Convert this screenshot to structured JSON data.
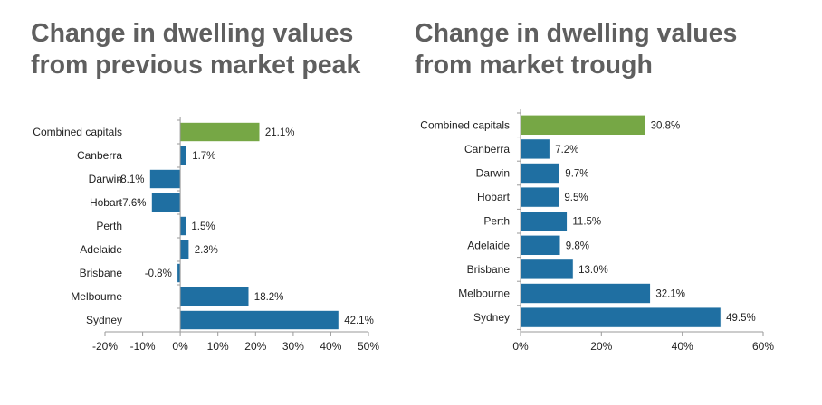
{
  "colors": {
    "highlight": "#76a745",
    "bar": "#1f6fa2",
    "bar_edge": "#ffffff",
    "axis": "#9a9a9a",
    "title": "#5f5f5f"
  },
  "chart_data": [
    {
      "type": "bar",
      "orientation": "horizontal",
      "title": [
        "Change in dwelling values",
        "from previous market peak"
      ],
      "categories": [
        "Combined capitals",
        "Canberra",
        "Darwin",
        "Hobart",
        "Perth",
        "Adelaide",
        "Brisbane",
        "Melbourne",
        "Sydney"
      ],
      "values": [
        21.1,
        1.7,
        -8.1,
        -7.6,
        1.5,
        2.3,
        -0.8,
        18.2,
        42.1
      ],
      "value_labels": [
        "21.1%",
        "1.7%",
        "-8.1%",
        "-7.6%",
        "1.5%",
        "2.3%",
        "-0.8%",
        "18.2%",
        "42.1%"
      ],
      "highlight_index": 0,
      "xlim": [
        -20,
        50
      ],
      "xticks": [
        -20,
        -10,
        0,
        10,
        20,
        30,
        40,
        50
      ],
      "xtick_labels": [
        "-20%",
        "-10%",
        "0%",
        "10%",
        "20%",
        "30%",
        "40%",
        "50%"
      ],
      "grid": false
    },
    {
      "type": "bar",
      "orientation": "horizontal",
      "title": [
        "Change in dwelling values",
        "from market trough"
      ],
      "categories": [
        "Combined capitals",
        "Canberra",
        "Darwin",
        "Hobart",
        "Perth",
        "Adelaide",
        "Brisbane",
        "Melbourne",
        "Sydney"
      ],
      "values": [
        30.8,
        7.2,
        9.7,
        9.5,
        11.5,
        9.8,
        13.0,
        32.1,
        49.5
      ],
      "value_labels": [
        "30.8%",
        "7.2%",
        "9.7%",
        "9.5%",
        "11.5%",
        "9.8%",
        "13.0%",
        "32.1%",
        "49.5%"
      ],
      "highlight_index": 0,
      "xlim": [
        0,
        60
      ],
      "xticks": [
        0,
        20,
        40,
        60
      ],
      "xtick_labels": [
        "0%",
        "20%",
        "40%",
        "60%"
      ],
      "grid": false
    }
  ]
}
